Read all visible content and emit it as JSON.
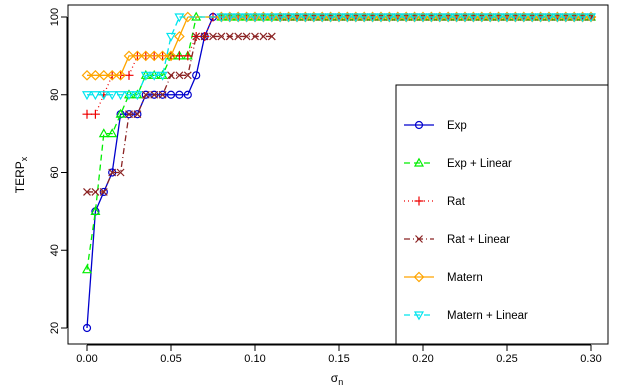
{
  "chart_data": {
    "type": "line",
    "title": "",
    "xlabel": {
      "main": "σ",
      "sub": "n"
    },
    "ylabel": {
      "main": "TERP",
      "sub": "x"
    },
    "xlim": [
      0,
      0.3
    ],
    "ylim": [
      20,
      100
    ],
    "x_ticks": [
      "0.00",
      "0.05",
      "0.10",
      "0.15",
      "0.20",
      "0.25",
      "0.30"
    ],
    "y_ticks": [
      "20",
      "40",
      "60",
      "80",
      "100"
    ],
    "legend_position": "right",
    "series": [
      {
        "name": "Exp",
        "color": "#0000CD",
        "dash": "solid",
        "marker": "circle",
        "x": [
          0.0,
          0.005,
          0.01,
          0.015,
          0.02,
          0.025,
          0.03,
          0.035,
          0.04,
          0.045,
          0.05,
          0.055,
          0.06,
          0.065,
          0.07,
          0.075,
          0.08
        ],
        "y": [
          20,
          50,
          55,
          60,
          75,
          75,
          75,
          80,
          80,
          80,
          80,
          80,
          80,
          85,
          95,
          100,
          100
        ]
      },
      {
        "name": "Exp + Linear",
        "color": "#00EE00",
        "dash": "6,4",
        "marker": "triangle-up",
        "x": [
          0.0,
          0.005,
          0.01,
          0.015,
          0.02,
          0.025,
          0.03,
          0.035,
          0.04,
          0.045,
          0.05,
          0.055,
          0.06,
          0.065
        ],
        "y": [
          35,
          50,
          70,
          70,
          75,
          80,
          80,
          85,
          85,
          85,
          90,
          90,
          90,
          100
        ]
      },
      {
        "name": "Rat",
        "color": "#EE0000",
        "dash": "1,3",
        "marker": "plus",
        "x": [
          0.0,
          0.005,
          0.01,
          0.015,
          0.02,
          0.025,
          0.03,
          0.035,
          0.04,
          0.045,
          0.05,
          0.055,
          0.06,
          0.065,
          0.07,
          0.075
        ],
        "y": [
          75,
          75,
          80,
          85,
          85,
          85,
          90,
          90,
          90,
          90,
          90,
          90,
          90,
          95,
          95,
          100
        ]
      },
      {
        "name": "Rat + Linear",
        "color": "#8B2323",
        "dash": "6,3,1,3",
        "marker": "x",
        "x": [
          0.0,
          0.005,
          0.01,
          0.015,
          0.02,
          0.025,
          0.03,
          0.035,
          0.04,
          0.045,
          0.05,
          0.055,
          0.06,
          0.065,
          0.07,
          0.075,
          0.08,
          0.085,
          0.09,
          0.095,
          0.1,
          0.105,
          0.11
        ],
        "y": [
          55,
          55,
          55,
          60,
          60,
          75,
          75,
          80,
          80,
          80,
          85,
          85,
          85,
          95,
          95,
          95,
          95,
          95,
          95,
          95,
          95,
          95,
          95
        ]
      },
      {
        "name": "Matern",
        "color": "#FFA500",
        "dash": "solid",
        "marker": "diamond",
        "x": [
          0.0,
          0.005,
          0.01,
          0.015,
          0.02,
          0.025,
          0.03,
          0.035,
          0.04,
          0.045,
          0.05,
          0.055,
          0.06
        ],
        "y": [
          85,
          85,
          85,
          85,
          85,
          90,
          90,
          90,
          90,
          90,
          90,
          95,
          100
        ]
      },
      {
        "name": "Matern + Linear",
        "color": "#00E5EE",
        "dash": "6,4",
        "marker": "triangle-down",
        "x": [
          0.0,
          0.005,
          0.01,
          0.015,
          0.02,
          0.025,
          0.03,
          0.035,
          0.04,
          0.045,
          0.05,
          0.055
        ],
        "y": [
          80,
          80,
          80,
          80,
          80,
          80,
          80,
          85,
          85,
          85,
          95,
          100
        ]
      }
    ]
  }
}
